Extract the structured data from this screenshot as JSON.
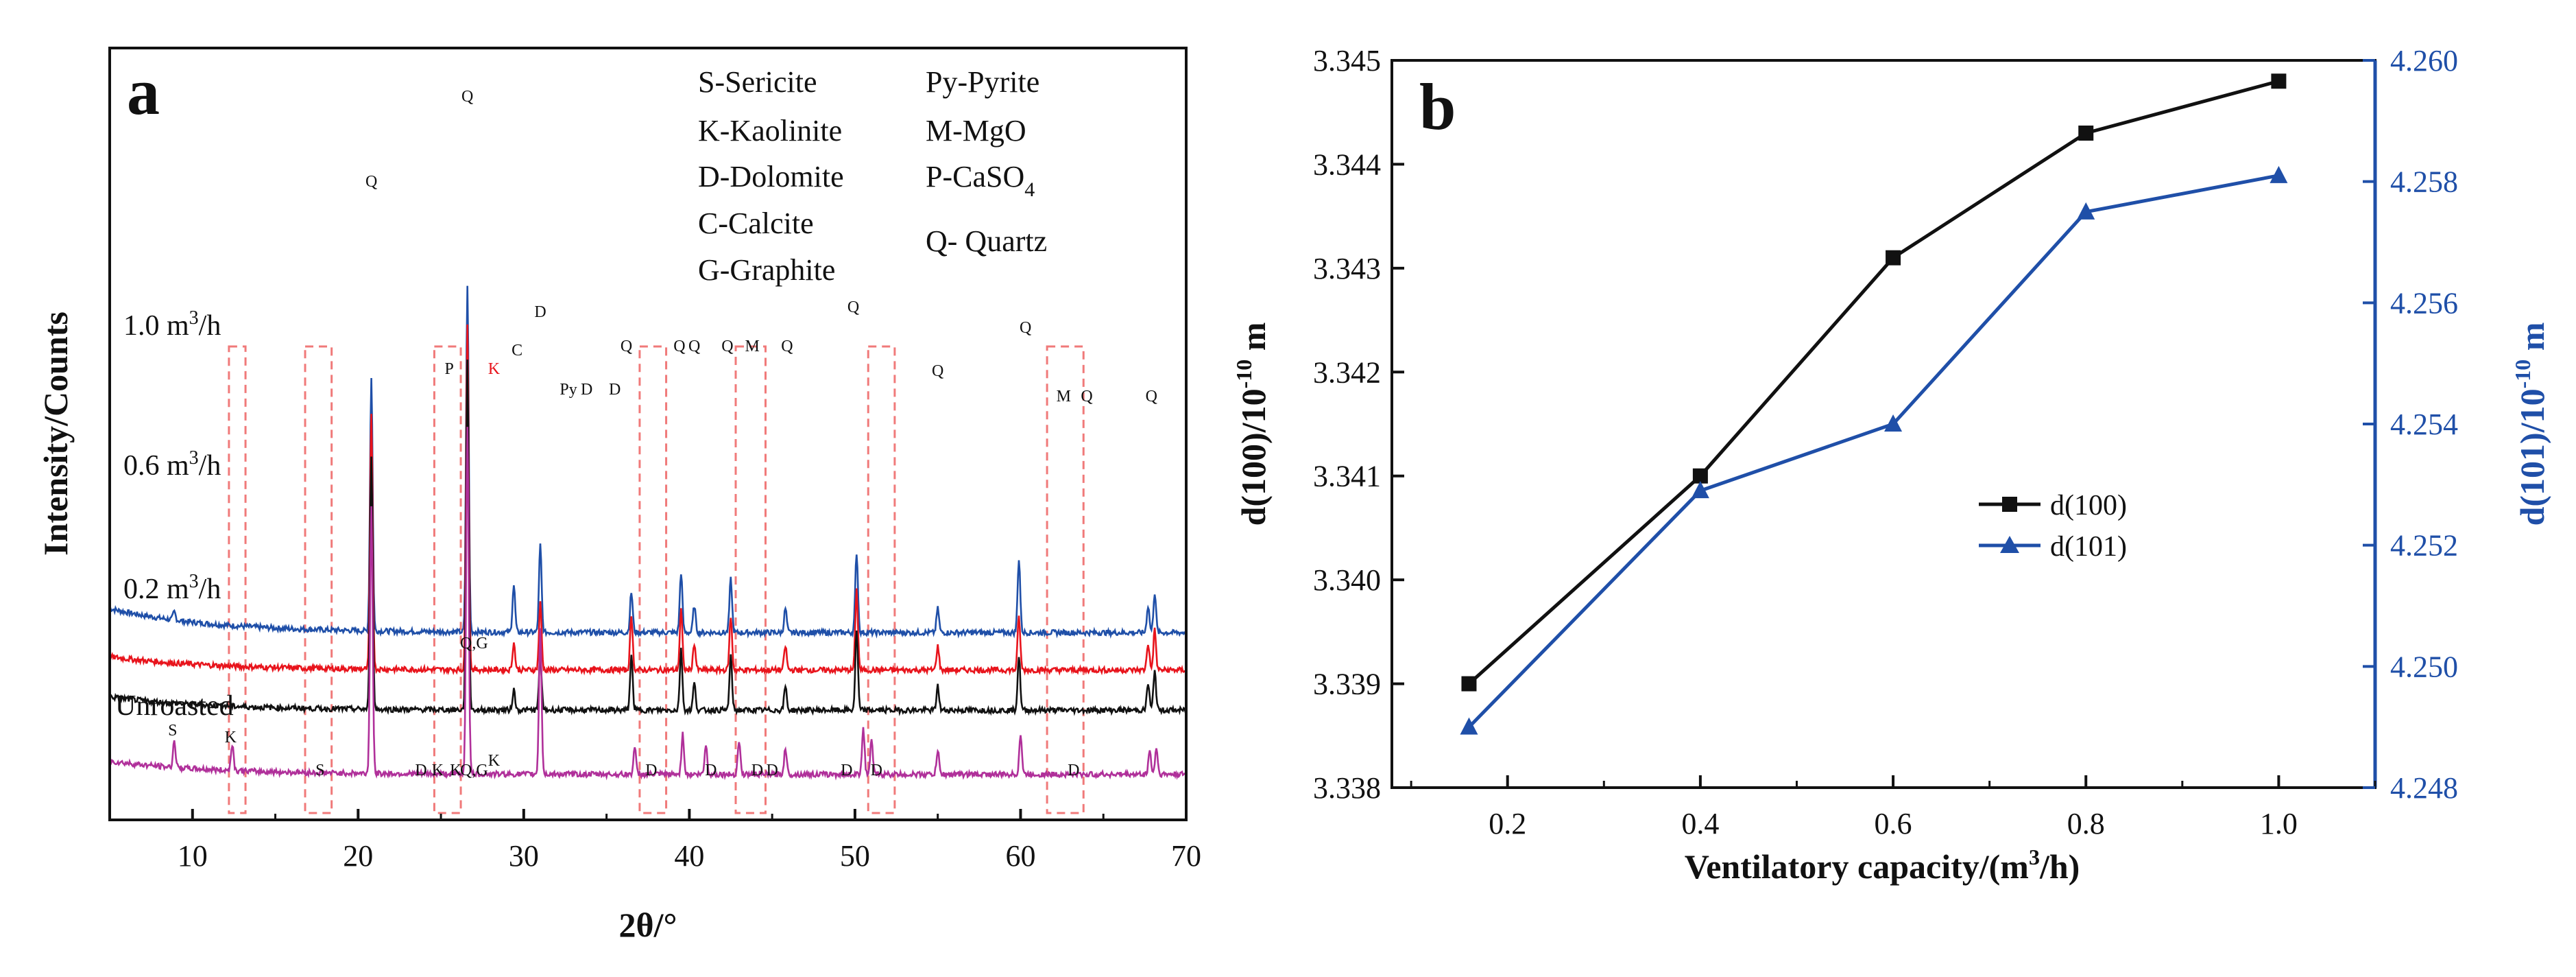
{
  "panel_labels": {
    "a": "a",
    "b": "b"
  },
  "chart_data": [
    {
      "id": "a",
      "type": "line",
      "title": "",
      "xlabel": "2θ/°",
      "ylabel": "Intensity/Counts",
      "xlim": [
        5,
        70
      ],
      "xticks": [
        10,
        20,
        30,
        40,
        50,
        60,
        70
      ],
      "legend_left": [
        "S-Sericite",
        "K-Kaolinite",
        "D-Dolomite",
        "C-Calcite",
        "G-Graphite"
      ],
      "legend_right": [
        {
          "main": "Py-Pyrite"
        },
        {
          "main": "M-MgO"
        },
        {
          "main": "P-CaSO",
          "sub": "4"
        },
        {
          "main": "Q- Quartz"
        }
      ],
      "series": [
        {
          "name": "1.0 m³/h",
          "label_main": "1.0 m",
          "label_sup": "3",
          "label_tail": "/h",
          "color": "#1f4fa8",
          "baseline": 140,
          "peaks": [
            [
              8.9,
              6
            ],
            [
              20.8,
              190
            ],
            [
              26.6,
              260
            ],
            [
              29.4,
              35
            ],
            [
              31.0,
              65
            ],
            [
              36.5,
              30
            ],
            [
              39.5,
              45
            ],
            [
              40.3,
              20
            ],
            [
              42.5,
              40
            ],
            [
              45.8,
              18
            ],
            [
              50.1,
              60
            ],
            [
              55.0,
              18
            ],
            [
              59.9,
              55
            ],
            [
              67.7,
              20
            ],
            [
              68.1,
              30
            ]
          ]
        },
        {
          "name": "0.6 m³/h",
          "label_main": "0.6 m",
          "label_sup": "3",
          "label_tail": "/h",
          "color": "#e8141c",
          "baseline": 112,
          "peaks": [
            [
              20.8,
              190
            ],
            [
              26.6,
              260
            ],
            [
              29.4,
              20
            ],
            [
              31.0,
              50
            ],
            [
              36.5,
              40
            ],
            [
              39.5,
              45
            ],
            [
              40.3,
              20
            ],
            [
              42.5,
              40
            ],
            [
              45.8,
              18
            ],
            [
              50.1,
              60
            ],
            [
              55.0,
              18
            ],
            [
              59.9,
              40
            ],
            [
              67.7,
              20
            ],
            [
              68.1,
              30
            ]
          ]
        },
        {
          "name": "0.2 m³/h",
          "label_main": "0.2 m",
          "label_sup": "3",
          "label_tail": "/h",
          "color": "#111111",
          "baseline": 82,
          "peaks": [
            [
              20.8,
              190
            ],
            [
              26.6,
              260
            ],
            [
              29.4,
              15
            ],
            [
              31.0,
              40
            ],
            [
              36.5,
              40
            ],
            [
              39.5,
              45
            ],
            [
              40.3,
              20
            ],
            [
              42.5,
              40
            ],
            [
              45.8,
              18
            ],
            [
              50.1,
              60
            ],
            [
              55.0,
              18
            ],
            [
              59.9,
              40
            ],
            [
              67.7,
              20
            ],
            [
              68.1,
              30
            ]
          ]
        },
        {
          "name": "Unroasted",
          "label_main": "Unroasted",
          "label_sup": "",
          "label_tail": "",
          "color": "#b0309a",
          "baseline": 34,
          "peaks": [
            [
              8.9,
              20
            ],
            [
              12.4,
              20
            ],
            [
              20.8,
              200
            ],
            [
              26.6,
              260
            ],
            [
              31.0,
              110
            ],
            [
              36.7,
              20
            ],
            [
              39.6,
              30
            ],
            [
              41.0,
              22
            ],
            [
              43.0,
              25
            ],
            [
              45.8,
              20
            ],
            [
              50.5,
              35
            ],
            [
              51.0,
              25
            ],
            [
              55.0,
              18
            ],
            [
              60.0,
              30
            ],
            [
              67.8,
              18
            ],
            [
              68.2,
              20
            ]
          ]
        }
      ],
      "peak_labels": [
        {
          "t": "Q",
          "x": 20.8,
          "s": 0,
          "c": "#111111"
        },
        {
          "t": "Q",
          "x": 26.6,
          "s": 0,
          "c": "#111111"
        },
        {
          "t": "P",
          "x": 25.5,
          "s": 0,
          "c": "#111111"
        },
        {
          "t": "K",
          "x": 28.2,
          "s": 0,
          "c": "#e8141c"
        },
        {
          "t": "C",
          "x": 29.6,
          "s": 0,
          "c": "#111111"
        },
        {
          "t": "D",
          "x": 31.0,
          "s": 0,
          "c": "#111111"
        },
        {
          "t": "Py",
          "x": 32.7,
          "s": 0,
          "c": "#111111"
        },
        {
          "t": "D",
          "x": 33.8,
          "s": 0,
          "c": "#111111"
        },
        {
          "t": "D",
          "x": 35.5,
          "s": 0,
          "c": "#111111"
        },
        {
          "t": "Q",
          "x": 36.2,
          "s": 0,
          "c": "#111111"
        },
        {
          "t": "Q",
          "x": 39.4,
          "s": 0,
          "c": "#111111"
        },
        {
          "t": "Q",
          "x": 40.3,
          "s": 0,
          "c": "#111111"
        },
        {
          "t": "Q",
          "x": 42.3,
          "s": 0,
          "c": "#111111"
        },
        {
          "t": "M",
          "x": 43.8,
          "s": 0,
          "c": "#111111"
        },
        {
          "t": "Q",
          "x": 45.9,
          "s": 0,
          "c": "#111111"
        },
        {
          "t": "Q",
          "x": 49.9,
          "s": 0,
          "c": "#111111"
        },
        {
          "t": "Q",
          "x": 55.0,
          "s": 0,
          "c": "#111111"
        },
        {
          "t": "Q",
          "x": 60.3,
          "s": 0,
          "c": "#111111"
        },
        {
          "t": "M",
          "x": 62.6,
          "s": 0,
          "c": "#111111"
        },
        {
          "t": "Q",
          "x": 64.0,
          "s": 0,
          "c": "#111111"
        },
        {
          "t": "Q",
          "x": 67.9,
          "s": 0,
          "c": "#111111"
        },
        {
          "t": "Q,G",
          "x": 27.0,
          "s": 2,
          "c": "#111111"
        },
        {
          "t": "Q,G",
          "x": 27.0,
          "s": 3,
          "c": "#111111"
        },
        {
          "t": "S",
          "x": 8.8,
          "s": 3,
          "c": "#111111"
        },
        {
          "t": "K",
          "x": 12.3,
          "s": 3,
          "c": "#111111"
        },
        {
          "t": "S",
          "x": 17.7,
          "s": 3,
          "c": "#111111"
        },
        {
          "t": "D",
          "x": 23.8,
          "s": 3,
          "c": "#111111"
        },
        {
          "t": "K",
          "x": 24.8,
          "s": 3,
          "c": "#111111"
        },
        {
          "t": "K",
          "x": 25.9,
          "s": 3,
          "c": "#111111"
        },
        {
          "t": "K",
          "x": 28.2,
          "s": 3,
          "c": "#111111"
        },
        {
          "t": "D",
          "x": 37.7,
          "s": 3,
          "c": "#111111"
        },
        {
          "t": "D",
          "x": 41.3,
          "s": 3,
          "c": "#111111"
        },
        {
          "t": "D",
          "x": 44.1,
          "s": 3,
          "c": "#111111"
        },
        {
          "t": "D",
          "x": 45.0,
          "s": 3,
          "c": "#111111"
        },
        {
          "t": "D",
          "x": 49.5,
          "s": 3,
          "c": "#111111"
        },
        {
          "t": "D",
          "x": 51.3,
          "s": 3,
          "c": "#111111"
        },
        {
          "t": "D",
          "x": 63.2,
          "s": 3,
          "c": "#111111"
        }
      ],
      "highlight_ranges": [
        [
          12.2,
          13.2
        ],
        [
          16.8,
          18.4
        ],
        [
          24.6,
          26.2
        ],
        [
          37.0,
          38.6
        ],
        [
          42.8,
          44.6
        ],
        [
          50.8,
          52.4
        ],
        [
          61.6,
          63.8
        ]
      ]
    },
    {
      "id": "b",
      "type": "line",
      "title": "",
      "xlabel_main": "Ventilatory capacity/(m",
      "xlabel_sup": "3",
      "xlabel_tail": "/h)",
      "ylabel_left": "d(100)/10",
      "ylabel_left_exp": "-10",
      "ylabel_left_unit": " m",
      "ylabel_right": "d(101)/10",
      "ylabel_right_exp": "-10",
      "ylabel_right_unit": " m",
      "xlim": [
        0.08,
        1.1
      ],
      "ylim_left": [
        3.338,
        3.345
      ],
      "ylim_right": [
        4.248,
        4.26
      ],
      "xticks": [
        "0.2",
        "0.4",
        "0.6",
        "0.8",
        "1.0"
      ],
      "yticks_left": [
        "3.338",
        "3.339",
        "3.340",
        "3.341",
        "3.342",
        "3.343",
        "3.344",
        "3.345"
      ],
      "yticks_right": [
        "4.248",
        "4.250",
        "4.252",
        "4.254",
        "4.256",
        "4.258",
        "4.260"
      ],
      "legend": [
        "d(100)",
        "d(101)"
      ],
      "series": [
        {
          "name": "d(100)",
          "axis": "left",
          "color": "#111111",
          "marker": "square",
          "x": [
            0.16,
            0.4,
            0.6,
            0.8,
            1.0
          ],
          "y": [
            3.339,
            3.341,
            3.3431,
            3.3443,
            3.3448
          ]
        },
        {
          "name": "d(101)",
          "axis": "right",
          "color": "#1f4fa8",
          "marker": "triangle",
          "x": [
            0.16,
            0.4,
            0.6,
            0.8,
            1.0
          ],
          "y": [
            4.249,
            4.2529,
            4.254,
            4.2575,
            4.2581
          ]
        }
      ]
    }
  ]
}
